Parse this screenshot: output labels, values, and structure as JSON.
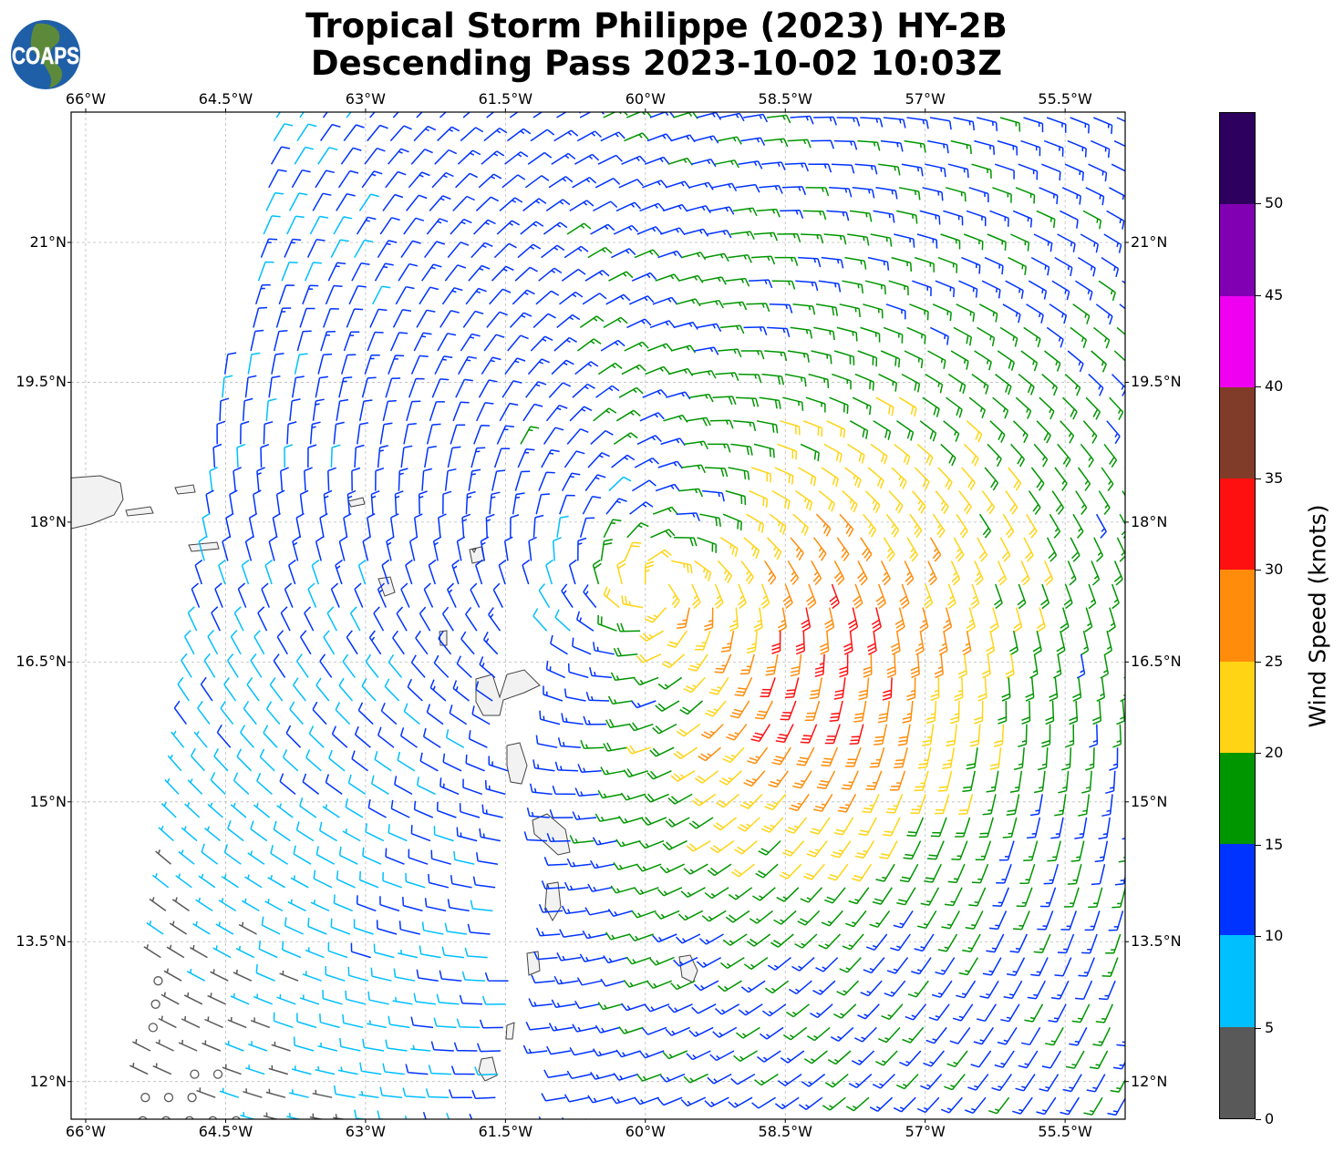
{
  "title": {
    "line1": "Tropical Storm Philippe (2023) HY-2B",
    "line2": "Descending Pass 2023-10-02 10:03Z"
  },
  "logo": {
    "text": "COAPS"
  },
  "map": {
    "lon_labels": [
      "66°W",
      "64.5°W",
      "63°W",
      "61.5°W",
      "60°W",
      "58.5°W",
      "57°W",
      "55.5°W"
    ],
    "lat_labels": [
      "21°N",
      "19.5°N",
      "18°N",
      "16.5°N",
      "15°N",
      "13.5°N",
      "12°N"
    ],
    "storm_center": {
      "lon": -59.9,
      "lat": 17.3
    },
    "circulation": "cyclonic",
    "land_color": "#f2f2f2",
    "coast_color": "#444444"
  },
  "colorbar": {
    "label": "Wind Speed (knots)",
    "ticks": [
      "0",
      "5",
      "10",
      "15",
      "20",
      "25",
      "30",
      "35",
      "40",
      "45",
      "50"
    ],
    "bins": [
      {
        "range": "0-5",
        "color": "#595959"
      },
      {
        "range": "5-10",
        "color": "#00bfff"
      },
      {
        "range": "10-15",
        "color": "#0033ff"
      },
      {
        "range": "15-20",
        "color": "#009600"
      },
      {
        "range": "20-25",
        "color": "#ffd414"
      },
      {
        "range": "25-30",
        "color": "#ff8c0a"
      },
      {
        "range": "30-35",
        "color": "#ff1010"
      },
      {
        "range": "35-40",
        "color": "#803c28"
      },
      {
        "range": "40-45",
        "color": "#f000f0"
      },
      {
        "range": "45-50",
        "color": "#8200b4"
      },
      {
        "range": "50+",
        "color": "#2d005f"
      }
    ]
  }
}
